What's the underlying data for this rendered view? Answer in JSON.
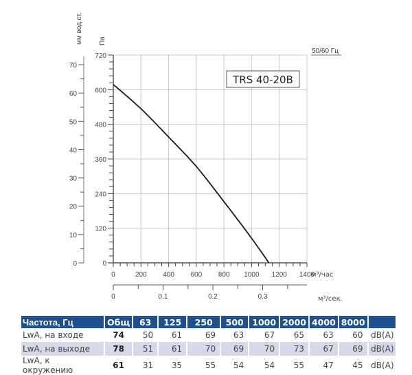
{
  "chart_data": {
    "type": "line",
    "title": "TRS 40-20B",
    "frequency_label": "50/60 Гц",
    "x_axis": {
      "label": "м³/час",
      "range": [
        0,
        1400
      ],
      "ticks": [
        0,
        200,
        400,
        600,
        800,
        1000,
        1200,
        1400
      ]
    },
    "x2_axis": {
      "label": "м³/сек.",
      "ticks": [
        0,
        0.1,
        0.2,
        0.3
      ]
    },
    "y_axis": {
      "label": "Па",
      "range": [
        0,
        720
      ],
      "ticks": [
        0,
        120,
        240,
        360,
        480,
        600,
        720
      ]
    },
    "y2_axis": {
      "label": "мм вод.ст.",
      "ticks": [
        0,
        10,
        20,
        30,
        40,
        50,
        60,
        70
      ]
    },
    "grid": true,
    "series": [
      {
        "name": "TRS 40-20B",
        "x": [
          0,
          200,
          400,
          600,
          800,
          1000,
          1125
        ],
        "y": [
          618,
          534,
          436,
          334,
          212,
          85,
          0
        ]
      }
    ]
  },
  "table": {
    "headers": [
      "Частота, Гц",
      "Общ",
      "63",
      "125",
      "250",
      "500",
      "1000",
      "2000",
      "4000",
      "8000",
      ""
    ],
    "rows": [
      {
        "label": "LwA, на входе",
        "total": "74",
        "values": [
          "50",
          "61",
          "69",
          "63",
          "67",
          "65",
          "63",
          "60"
        ],
        "unit": "dB(A)"
      },
      {
        "label": "LwA, на выходе",
        "total": "78",
        "values": [
          "51",
          "61",
          "70",
          "69",
          "70",
          "73",
          "67",
          "69"
        ],
        "unit": "dB(A)"
      },
      {
        "label": "LwA, к окружению",
        "total": "61",
        "values": [
          "31",
          "35",
          "55",
          "54",
          "54",
          "55",
          "47",
          "45"
        ],
        "unit": "dB(A)"
      }
    ]
  },
  "colors": {
    "header_bg": "#1e4f8f",
    "alt_row_bg": "#d5d9ea",
    "grid": "#c8c8c8",
    "curve": "#1a1a1a"
  }
}
